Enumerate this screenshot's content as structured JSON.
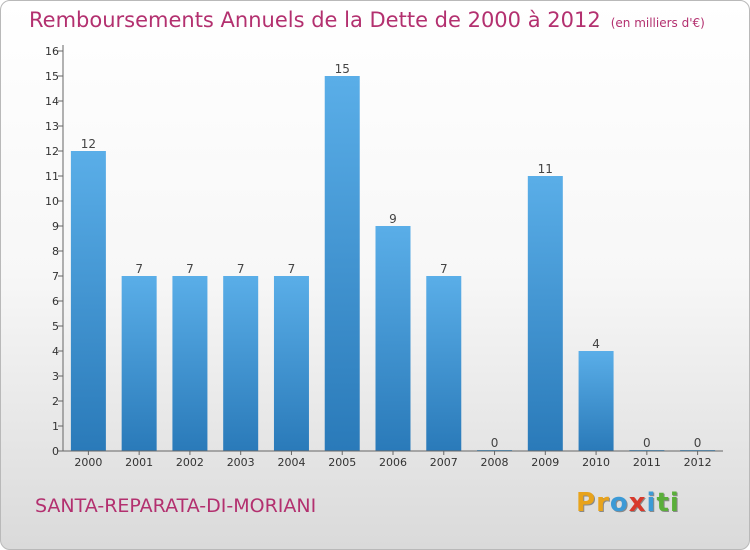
{
  "chart_data": {
    "type": "bar",
    "title": "Remboursements Annuels de la Dette de 2000 à 2012",
    "unit": "(en milliers d'€)",
    "categories": [
      "2000",
      "2001",
      "2002",
      "2003",
      "2004",
      "2005",
      "2006",
      "2007",
      "2008",
      "2009",
      "2010",
      "2011",
      "2012"
    ],
    "values": [
      12,
      7,
      7,
      7,
      7,
      15,
      9,
      7,
      0,
      11,
      4,
      0,
      0
    ],
    "ylim": [
      0,
      16
    ],
    "yticks": [
      0,
      1,
      2,
      3,
      4,
      5,
      6,
      7,
      8,
      9,
      10,
      11,
      12,
      13,
      14,
      15,
      16
    ],
    "grid": false,
    "legend": "none",
    "bar_color_top": "#5aaee8",
    "bar_color_bottom": "#2a7ab9"
  },
  "footer": {
    "commune": "SANTA-REPARATA-DI-MORIANI",
    "logo_letters": [
      {
        "ch": "P",
        "color": "#e8a31c"
      },
      {
        "ch": "r",
        "color": "#e8a31c"
      },
      {
        "ch": "o",
        "color": "#3c9ad6"
      },
      {
        "ch": "x",
        "color": "#d83a2c"
      },
      {
        "ch": "i",
        "color": "#3c9ad6"
      },
      {
        "ch": "t",
        "color": "#5aaf3a"
      },
      {
        "ch": "i",
        "color": "#5aaf3a"
      }
    ]
  },
  "colors": {
    "accent": "#b3306f",
    "axis": "#666666"
  }
}
